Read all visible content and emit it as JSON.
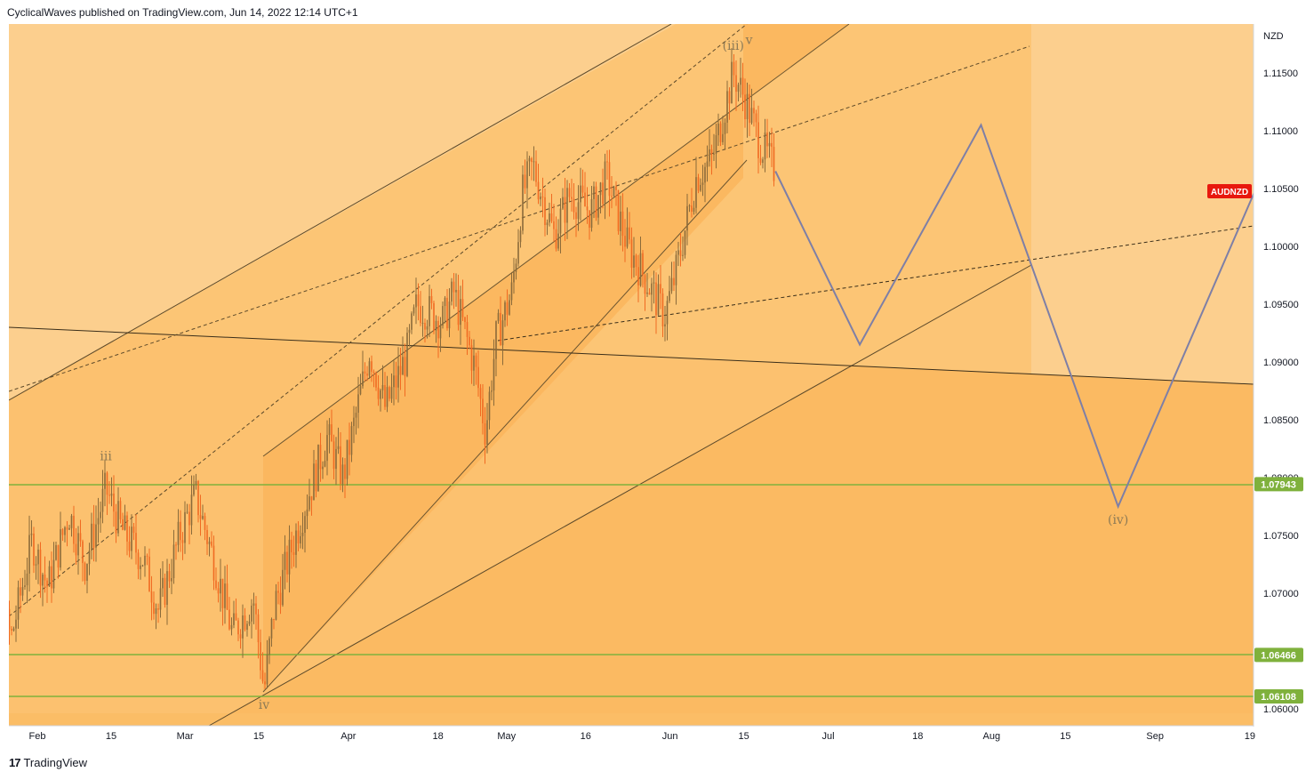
{
  "header": {
    "text": "CyclicalWaves published on TradingView.com, Jun 14, 2022 12:14 UTC+1"
  },
  "footer": {
    "logo": "17",
    "brand": "TradingView"
  },
  "colors": {
    "background": "#fccf8e",
    "channel_inner": "#fbbb62",
    "candle_up": "#8a6a3a",
    "candle_down": "#f06a22",
    "projection": "#7e7fa6",
    "support": "#7fb13c",
    "symbol_tag": "#e8180e"
  },
  "chart_data": {
    "type": "candlestick",
    "symbol": "AUDNZD",
    "currency": "NZD",
    "ylim": [
      1.0595,
      1.1215
    ],
    "y_ticks": [
      "1.11500",
      "1.11000",
      "1.10500",
      "1.10000",
      "1.09500",
      "1.09000",
      "1.08500",
      "1.08000",
      "1.07500",
      "1.07000",
      "1.06500",
      "1.06000"
    ],
    "x_ticks": [
      "Feb",
      "15",
      "Mar",
      "15",
      "Apr",
      "18",
      "May",
      "16",
      "Jun",
      "15",
      "Jul",
      "18",
      "Aug",
      "15",
      "Sep",
      "19"
    ],
    "last_price_tag": "AUDNZD",
    "support_levels": [
      "1.07943",
      "1.06466",
      "1.06108"
    ],
    "price_path": [
      [
        "2022-01-25",
        1.0695
      ],
      [
        "2022-01-27",
        1.066
      ],
      [
        "2022-01-31",
        1.0745
      ],
      [
        "2022-02-03",
        1.0705
      ],
      [
        "2022-02-07",
        1.077
      ],
      [
        "2022-02-10",
        1.0725
      ],
      [
        "2022-02-14",
        1.079
      ],
      [
        "2022-02-17",
        1.0755
      ],
      [
        "2022-02-21",
        1.073
      ],
      [
        "2022-02-24",
        1.0685
      ],
      [
        "2022-02-28",
        1.075
      ],
      [
        "2022-03-03",
        1.0785
      ],
      [
        "2022-03-07",
        1.072
      ],
      [
        "2022-03-10",
        1.0665
      ],
      [
        "2022-03-14",
        1.0695
      ],
      [
        "2022-03-16",
        1.0615
      ],
      [
        "2022-03-18",
        1.069
      ],
      [
        "2022-03-23",
        1.0765
      ],
      [
        "2022-03-28",
        1.0835
      ],
      [
        "2022-03-31",
        1.08
      ],
      [
        "2022-04-05",
        1.091
      ],
      [
        "2022-04-08",
        1.086
      ],
      [
        "2022-04-12",
        1.0905
      ],
      [
        "2022-04-14",
        1.095
      ],
      [
        "2022-04-19",
        1.0935
      ],
      [
        "2022-04-21",
        1.096
      ],
      [
        "2022-04-25",
        1.0895
      ],
      [
        "2022-04-27",
        1.084
      ],
      [
        "2022-04-29",
        1.092
      ],
      [
        "2022-05-02",
        1.096
      ],
      [
        "2022-05-04",
        1.1045
      ],
      [
        "2022-05-06",
        1.107
      ],
      [
        "2022-05-10",
        1.101
      ],
      [
        "2022-05-13",
        1.1045
      ],
      [
        "2022-05-17",
        1.103
      ],
      [
        "2022-05-20",
        1.106
      ],
      [
        "2022-05-24",
        1.1
      ],
      [
        "2022-05-27",
        1.0975
      ],
      [
        "2022-05-31",
        1.094
      ],
      [
        "2022-06-02",
        1.0975
      ],
      [
        "2022-06-06",
        1.106
      ],
      [
        "2022-06-09",
        1.1075
      ],
      [
        "2022-06-13",
        1.115
      ],
      [
        "2022-06-15",
        1.113
      ],
      [
        "2022-06-18",
        1.109
      ],
      [
        "2022-06-21",
        1.1065
      ]
    ],
    "projection_path": [
      [
        "2022-06-21",
        1.1065
      ],
      [
        "2022-07-07",
        1.0915
      ],
      [
        "2022-07-30",
        1.1105
      ],
      [
        "2022-08-25",
        1.0775
      ],
      [
        "2022-09-23",
        1.108
      ]
    ],
    "wave_labels": [
      {
        "text": "iii",
        "date": "2022-02-14",
        "price": 1.0815
      },
      {
        "text": "iv",
        "date": "2022-03-16",
        "price": 1.06
      },
      {
        "text": "(iii)",
        "date": "2022-06-13",
        "price": 1.117
      },
      {
        "text": "v",
        "date": "2022-06-16",
        "price": 1.1175
      },
      {
        "text": "(iv)",
        "date": "2022-08-25",
        "price": 1.076
      }
    ]
  }
}
